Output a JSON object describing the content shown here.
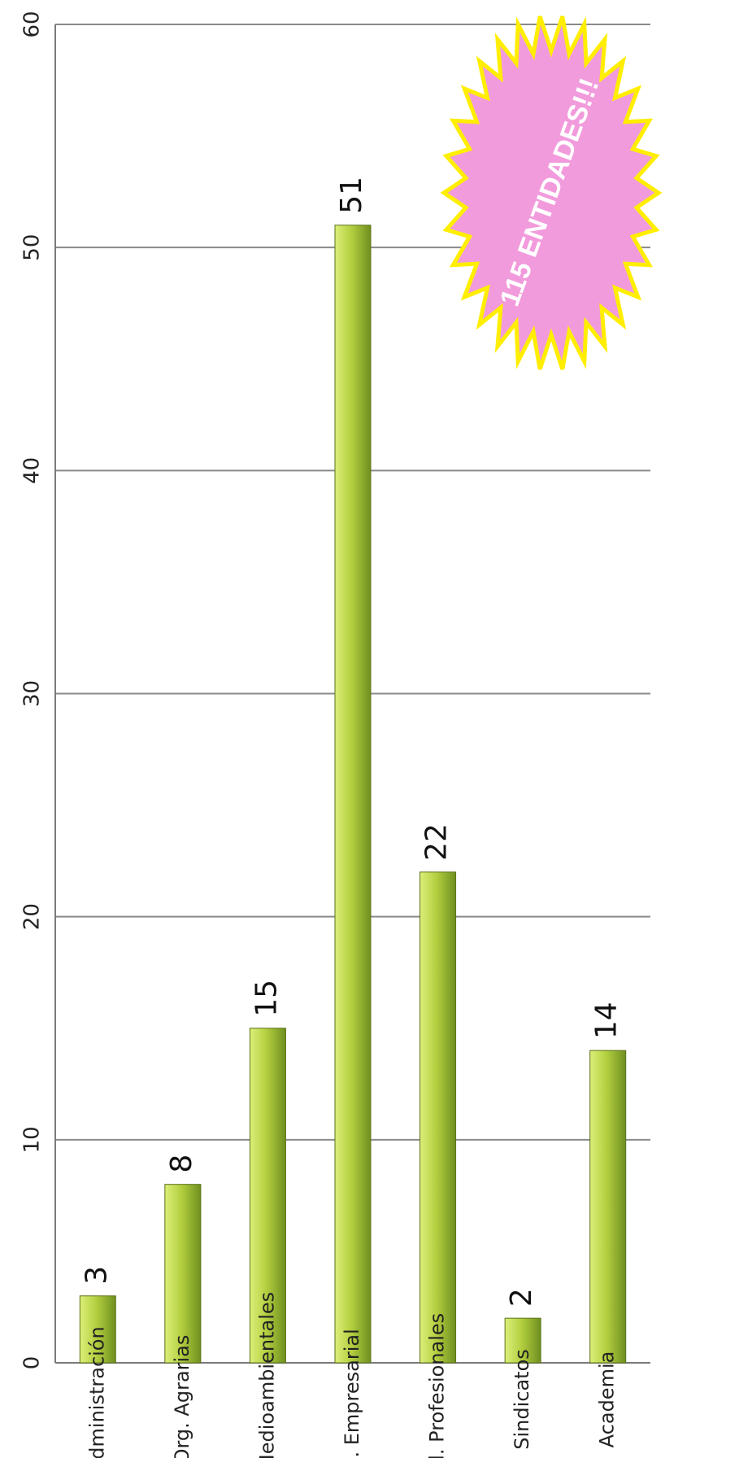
{
  "chart_data": {
    "type": "bar",
    "orientation": "rotated-90-clockwise",
    "categories": [
      "Administración",
      "Org. Agrarias",
      "As. Medioambientales",
      "S. Empresarial",
      "Col. Profesionales",
      "Sindicatos",
      "Academia"
    ],
    "values": [
      3,
      8,
      15,
      51,
      22,
      2,
      14
    ],
    "data_labels": [
      "3",
      "8",
      "15",
      "51",
      "22",
      "2",
      "14"
    ],
    "ylim": [
      0,
      60
    ],
    "yticks": [
      "0",
      "10",
      "20",
      "30",
      "40",
      "50",
      "60"
    ],
    "grid": true,
    "bar_color": "#9bbb2e",
    "annotation": {
      "text": "115 ENTIDADES!!!",
      "shape": "starburst",
      "fill": "#f29bdc",
      "stroke": "#ffee00"
    }
  }
}
